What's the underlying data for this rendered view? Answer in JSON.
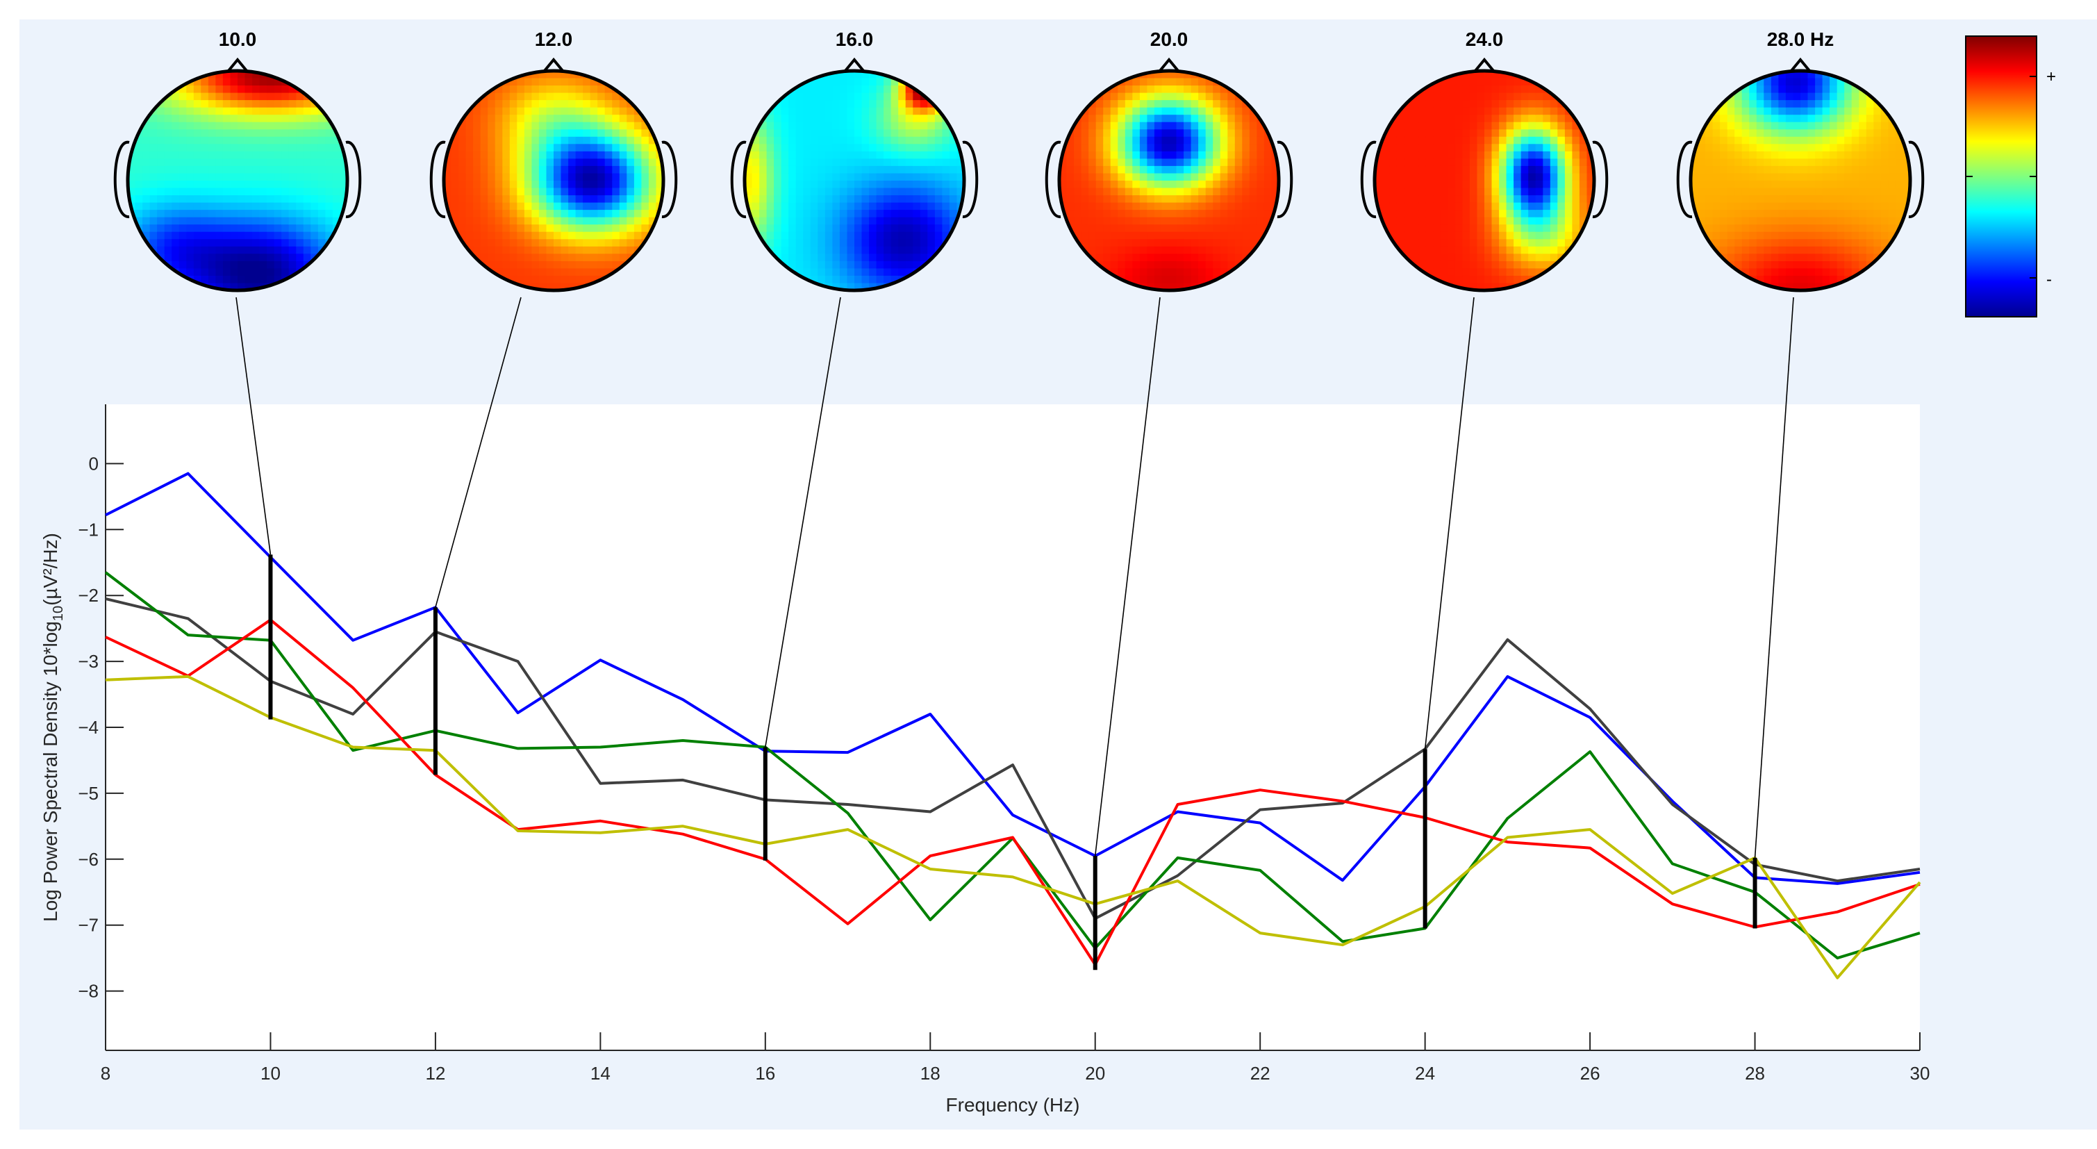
{
  "figure": {
    "background": "#ecf3fc",
    "axes_background": "#ffffff"
  },
  "topomaps": {
    "labels": [
      "10.0",
      "12.0",
      "16.0",
      "20.0",
      "24.0",
      "28.0 Hz"
    ],
    "frequencies": [
      10,
      12,
      16,
      20,
      24,
      28
    ],
    "colorbar": {
      "max_label": "+",
      "min_label": "-"
    }
  },
  "chart_data": {
    "type": "line",
    "xlabel": "Frequency (Hz)",
    "ylabel": "Log Power Spectral Density 10*log10(µV²/Hz)",
    "xlim": [
      8,
      30
    ],
    "ylim": [
      -8.9,
      0.9
    ],
    "x": [
      8,
      9,
      10,
      11,
      12,
      13,
      14,
      15,
      16,
      17,
      18,
      19,
      20,
      21,
      22,
      23,
      24,
      25,
      26,
      27,
      28,
      29,
      30
    ],
    "xticks": [
      8,
      10,
      12,
      14,
      16,
      18,
      20,
      22,
      24,
      26,
      28,
      30
    ],
    "yticks": [
      0,
      -1,
      -2,
      -3,
      -4,
      -5,
      -6,
      -7,
      -8
    ],
    "ytick_labels": [
      "0",
      "−1",
      "−2",
      "−3",
      "−4",
      "−5",
      "−6",
      "−7",
      "−8"
    ],
    "series": [
      {
        "name": "blue",
        "color": "#0000ff",
        "values": [
          -0.78,
          -0.15,
          -1.42,
          -2.68,
          -2.18,
          -3.78,
          -2.98,
          -3.58,
          -4.36,
          -4.38,
          -3.8,
          -5.33,
          -5.95,
          -5.28,
          -5.45,
          -6.32,
          -4.9,
          -3.23,
          -3.85,
          -5.12,
          -6.28,
          -6.37,
          -6.2
        ]
      },
      {
        "name": "gray",
        "color": "#404040",
        "values": [
          -2.05,
          -2.35,
          -3.3,
          -3.8,
          -2.55,
          -3.0,
          -4.85,
          -4.8,
          -5.1,
          -5.17,
          -5.28,
          -4.57,
          -6.9,
          -6.25,
          -5.25,
          -5.15,
          -4.33,
          -2.67,
          -3.72,
          -5.17,
          -6.08,
          -6.33,
          -6.15
        ]
      },
      {
        "name": "green",
        "color": "#008000",
        "values": [
          -1.65,
          -2.6,
          -2.68,
          -4.35,
          -4.05,
          -4.32,
          -4.3,
          -4.2,
          -4.3,
          -5.3,
          -6.92,
          -5.68,
          -7.35,
          -5.98,
          -6.17,
          -7.25,
          -7.05,
          -5.38,
          -4.37,
          -6.07,
          -6.5,
          -7.5,
          -7.12
        ]
      },
      {
        "name": "red",
        "color": "#ff0000",
        "values": [
          -2.63,
          -3.22,
          -2.37,
          -3.4,
          -4.72,
          -5.55,
          -5.42,
          -5.62,
          -6.0,
          -6.98,
          -5.95,
          -5.67,
          -7.6,
          -5.17,
          -4.95,
          -5.12,
          -5.37,
          -5.74,
          -5.83,
          -6.68,
          -7.03,
          -6.8,
          -6.38
        ]
      },
      {
        "name": "yellow",
        "color": "#bfbf00",
        "values": [
          -3.28,
          -3.23,
          -3.85,
          -4.3,
          -4.35,
          -5.57,
          -5.6,
          -5.5,
          -5.77,
          -5.55,
          -6.15,
          -6.27,
          -6.68,
          -6.33,
          -7.12,
          -7.3,
          -6.72,
          -5.67,
          -5.55,
          -6.52,
          -5.98,
          -7.8,
          -6.35
        ]
      }
    ],
    "markers": [
      {
        "x": 10,
        "ymin": -3.88,
        "ymax": -1.38
      },
      {
        "x": 12,
        "ymin": -4.72,
        "ymax": -2.18
      },
      {
        "x": 16,
        "ymin": -6.02,
        "ymax": -4.3
      },
      {
        "x": 20,
        "ymin": -7.68,
        "ymax": -5.95
      },
      {
        "x": 24,
        "ymin": -7.05,
        "ymax": -4.33
      },
      {
        "x": 28,
        "ymin": -7.05,
        "ymax": -5.98
      }
    ]
  }
}
